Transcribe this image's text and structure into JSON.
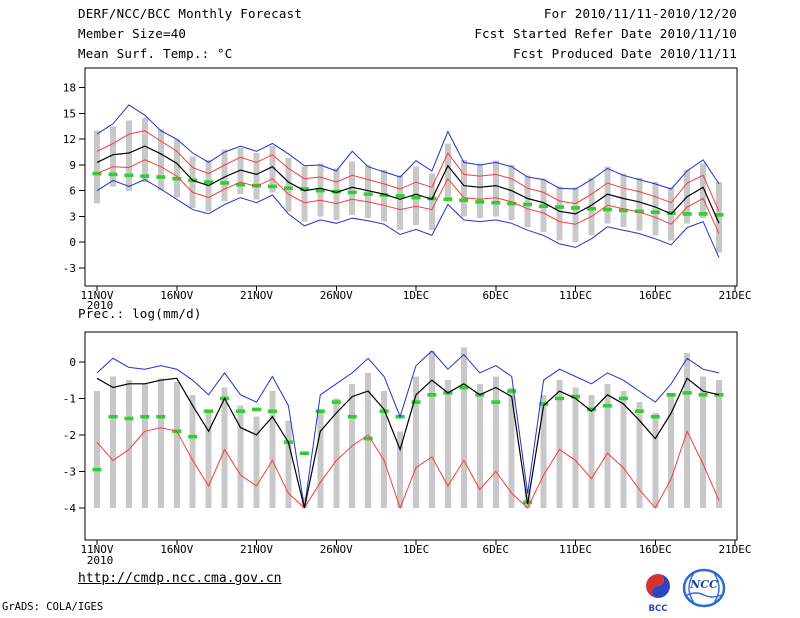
{
  "header": {
    "title": "DERF/NCC/BCC Monthly Forecast",
    "member_size": "Member Size=40",
    "for_range": "For 2010/11/11-2010/12/20",
    "refer_date": "Fcst Started Refer Date 2010/11/10",
    "produced_date": "Fcst Produced Date 2010/11/11"
  },
  "footer": {
    "url": "http://cmdp.ncc.cma.gov.cn",
    "credit": "GrADS: COLA/IGES",
    "bcc_logo_text": "BCC",
    "ncc_logo_text": "NCC"
  },
  "colors": {
    "axis": "#000000",
    "member_bar": "#c8c8c8",
    "max_min_line": "#2233cc",
    "std_line": "#fa3c3c",
    "mean_line": "#000000",
    "climatology": "#2fcf2f"
  },
  "chart_data": [
    {
      "type": "line",
      "name": "surface-temperature",
      "title": "Mean Surf. Temp.: °C",
      "x_year": "2010",
      "x_ticks": [
        "11NOV",
        "16NOV",
        "21NOV",
        "26NOV",
        "1DEC",
        "6DEC",
        "11DEC",
        "16DEC",
        "21DEC"
      ],
      "x_tick_interval_days": 5,
      "n_days": 40,
      "y_ticks": [
        18,
        15,
        12,
        9,
        6,
        3,
        0,
        -3
      ],
      "ylim": [
        -3,
        18
      ],
      "grid": false,
      "legend": "none",
      "series": [
        {
          "name": "member-range",
          "type": "bar",
          "color_key": "member_bar",
          "high": [
            13.0,
            13.5,
            14.2,
            14.5,
            13.2,
            12.0,
            10.0,
            9.6,
            10.8,
            11.0,
            10.4,
            11.2,
            9.8,
            8.8,
            9.2,
            8.6,
            9.4,
            9.0,
            8.4,
            7.8,
            8.8,
            8.0,
            11.5,
            9.6,
            9.2,
            9.5,
            9.0,
            7.8,
            7.4,
            6.5,
            6.4,
            7.5,
            8.8,
            8.0,
            7.5,
            7.0,
            6.4,
            8.5,
            9.2,
            7.0
          ],
          "low": [
            4.5,
            6.5,
            6.0,
            7.0,
            6.0,
            5.2,
            4.0,
            3.6,
            4.8,
            5.6,
            5.0,
            5.8,
            3.6,
            2.4,
            3.0,
            2.6,
            3.2,
            2.8,
            2.4,
            1.4,
            2.0,
            1.4,
            5.0,
            3.0,
            2.8,
            3.0,
            2.6,
            1.8,
            1.2,
            0.2,
            0.0,
            0.8,
            2.2,
            1.8,
            1.4,
            0.8,
            0.2,
            2.2,
            2.8,
            -1.2
          ]
        },
        {
          "name": "climatology",
          "type": "dash",
          "color_key": "climatology",
          "values": [
            8.0,
            7.9,
            7.8,
            7.7,
            7.6,
            7.4,
            7.2,
            7.0,
            6.9,
            6.7,
            6.6,
            6.5,
            6.3,
            6.2,
            6.0,
            5.9,
            5.8,
            5.6,
            5.5,
            5.4,
            5.2,
            5.1,
            5.0,
            4.9,
            4.7,
            4.6,
            4.5,
            4.4,
            4.2,
            4.1,
            4.0,
            3.9,
            3.8,
            3.7,
            3.6,
            3.5,
            3.4,
            3.3,
            3.3,
            3.2
          ]
        },
        {
          "name": "maximum",
          "type": "line",
          "color_key": "max_min_line",
          "values": [
            12.6,
            13.8,
            16.0,
            14.8,
            13.0,
            12.0,
            10.4,
            9.3,
            10.5,
            11.2,
            10.6,
            11.5,
            10.3,
            8.9,
            9.0,
            8.3,
            10.6,
            8.8,
            8.2,
            7.6,
            9.5,
            8.3,
            12.9,
            9.3,
            9.0,
            9.3,
            8.8,
            7.6,
            7.3,
            6.3,
            6.2,
            7.3,
            8.6,
            7.8,
            7.3,
            6.8,
            6.2,
            8.3,
            9.6,
            6.8
          ]
        },
        {
          "name": "minimum",
          "type": "line",
          "color_key": "max_min_line",
          "values": [
            6.0,
            7.2,
            6.5,
            7.3,
            6.2,
            5.0,
            3.8,
            3.3,
            4.4,
            5.2,
            4.6,
            5.5,
            3.3,
            1.9,
            2.6,
            2.2,
            2.8,
            2.5,
            2.1,
            0.9,
            1.5,
            0.8,
            4.4,
            2.6,
            2.4,
            2.6,
            2.2,
            1.4,
            0.8,
            -0.2,
            -0.6,
            0.4,
            1.8,
            1.4,
            1.0,
            0.4,
            -0.3,
            1.7,
            2.4,
            -1.8
          ]
        },
        {
          "name": "mean-plus-sd",
          "type": "line",
          "color_key": "std_line",
          "values": [
            10.6,
            11.5,
            12.6,
            13.0,
            11.8,
            10.6,
            8.7,
            8.0,
            9.0,
            9.9,
            9.3,
            10.2,
            8.6,
            7.4,
            7.6,
            7.0,
            7.8,
            7.3,
            6.8,
            6.2,
            7.0,
            6.4,
            10.4,
            7.9,
            7.7,
            7.9,
            7.4,
            6.3,
            5.8,
            4.8,
            4.5,
            5.6,
            6.9,
            6.3,
            5.9,
            5.3,
            4.6,
            6.9,
            7.8,
            3.6
          ]
        },
        {
          "name": "mean-minus-sd",
          "type": "line",
          "color_key": "std_line",
          "values": [
            8.0,
            8.8,
            8.7,
            9.6,
            8.8,
            7.7,
            5.8,
            5.2,
            6.2,
            7.0,
            6.5,
            7.4,
            5.6,
            4.6,
            4.9,
            4.5,
            5.0,
            4.7,
            4.3,
            3.8,
            4.2,
            3.8,
            7.4,
            5.2,
            5.0,
            5.2,
            4.7,
            3.9,
            3.4,
            2.4,
            2.1,
            3.0,
            4.3,
            3.9,
            3.5,
            2.9,
            2.1,
            4.1,
            5.1,
            1.0
          ]
        },
        {
          "name": "ensemble-mean",
          "type": "line",
          "color_key": "mean_line",
          "values": [
            9.3,
            10.2,
            10.4,
            11.2,
            10.3,
            9.2,
            7.2,
            6.6,
            7.6,
            8.4,
            7.9,
            8.8,
            7.0,
            6.0,
            6.3,
            5.8,
            6.4,
            6.0,
            5.6,
            5.0,
            5.6,
            5.0,
            8.9,
            6.6,
            6.4,
            6.6,
            6.0,
            5.1,
            4.6,
            3.6,
            3.3,
            4.3,
            5.6,
            5.1,
            4.7,
            4.1,
            3.3,
            5.3,
            6.4,
            2.2
          ]
        }
      ]
    },
    {
      "type": "line",
      "name": "precipitation",
      "title": "Prec.: log(mm/d)",
      "x_year": "2010",
      "x_ticks": [
        "11NOV",
        "16NOV",
        "21NOV",
        "26NOV",
        "1DEC",
        "6DEC",
        "11DEC",
        "16DEC",
        "21DEC"
      ],
      "x_tick_interval_days": 5,
      "n_days": 40,
      "y_ticks": [
        0,
        -1,
        -2,
        -3,
        -4
      ],
      "ylim": [
        -4,
        0
      ],
      "grid": false,
      "legend": "none",
      "series": [
        {
          "name": "member-range",
          "type": "bar",
          "color_key": "member_bar",
          "high": [
            -0.8,
            -0.4,
            -0.5,
            -0.6,
            -0.45,
            -0.55,
            -0.9,
            -1.3,
            -0.7,
            -1.2,
            -1.5,
            -0.8,
            -1.6,
            -3.7,
            -1.3,
            -1.0,
            -0.6,
            -0.3,
            -0.8,
            -1.9,
            -0.4,
            0.3,
            -0.5,
            0.4,
            -0.6,
            -0.4,
            -0.7,
            -3.5,
            -0.9,
            -0.5,
            -0.7,
            -0.9,
            -0.6,
            -0.8,
            -1.1,
            -1.4,
            -0.9,
            0.25,
            -0.4,
            -0.5
          ],
          "low": -4
        },
        {
          "name": "climatology",
          "type": "dash",
          "color_key": "climatology",
          "values": [
            -2.95,
            -1.5,
            -1.55,
            -1.5,
            -1.5,
            -1.9,
            -2.05,
            -1.35,
            -1.0,
            -1.35,
            -1.3,
            -1.35,
            -2.2,
            -2.5,
            -1.35,
            -1.1,
            -1.5,
            -2.1,
            -1.35,
            -1.5,
            -1.1,
            -0.9,
            -0.85,
            -0.7,
            -0.9,
            -1.1,
            -0.8,
            -3.85,
            -1.15,
            -1.0,
            -0.95,
            -1.3,
            -1.2,
            -1.0,
            -1.35,
            -1.5,
            -0.9,
            -0.85,
            -0.9,
            -0.9
          ]
        },
        {
          "name": "maximum",
          "type": "line",
          "color_key": "max_min_line",
          "values": [
            -0.3,
            0.1,
            -0.15,
            -0.2,
            -0.1,
            -0.2,
            -0.5,
            -0.9,
            -0.3,
            -0.9,
            -1.1,
            -0.4,
            -1.2,
            -4.0,
            -0.9,
            -0.6,
            -0.3,
            0.1,
            -0.4,
            -1.5,
            -0.1,
            0.3,
            -0.2,
            0.2,
            -0.3,
            -0.1,
            -0.4,
            -3.6,
            -0.5,
            -0.2,
            -0.4,
            -0.6,
            -0.3,
            -0.5,
            -0.8,
            -1.1,
            -0.6,
            0.1,
            -0.2,
            -0.3
          ]
        },
        {
          "name": "minimum",
          "type": "line",
          "color_key": "std_line",
          "values": [
            -2.2,
            -2.7,
            -2.4,
            -1.9,
            -1.8,
            -1.9,
            -2.7,
            -3.4,
            -2.4,
            -3.1,
            -3.4,
            -2.7,
            -3.6,
            -4.0,
            -3.3,
            -2.7,
            -2.3,
            -2.0,
            -2.7,
            -4.0,
            -2.9,
            -2.6,
            -3.4,
            -2.7,
            -3.5,
            -3.0,
            -3.6,
            -4.0,
            -3.1,
            -2.4,
            -2.7,
            -3.2,
            -2.5,
            -2.9,
            -3.5,
            -4.0,
            -3.2,
            -1.9,
            -2.8,
            -3.8
          ]
        },
        {
          "name": "ensemble-mean",
          "type": "line",
          "color_key": "mean_line",
          "values": [
            -0.45,
            -0.7,
            -0.6,
            -0.6,
            -0.5,
            -0.45,
            -1.2,
            -1.9,
            -1.0,
            -1.8,
            -2.0,
            -1.5,
            -2.2,
            -4.0,
            -1.9,
            -1.4,
            -0.95,
            -0.8,
            -1.3,
            -2.4,
            -0.9,
            -0.5,
            -0.85,
            -0.6,
            -0.9,
            -0.7,
            -0.95,
            -3.9,
            -1.2,
            -0.8,
            -1.0,
            -1.35,
            -0.9,
            -1.15,
            -1.6,
            -2.1,
            -1.4,
            -0.45,
            -0.8,
            -0.9
          ]
        }
      ]
    }
  ]
}
